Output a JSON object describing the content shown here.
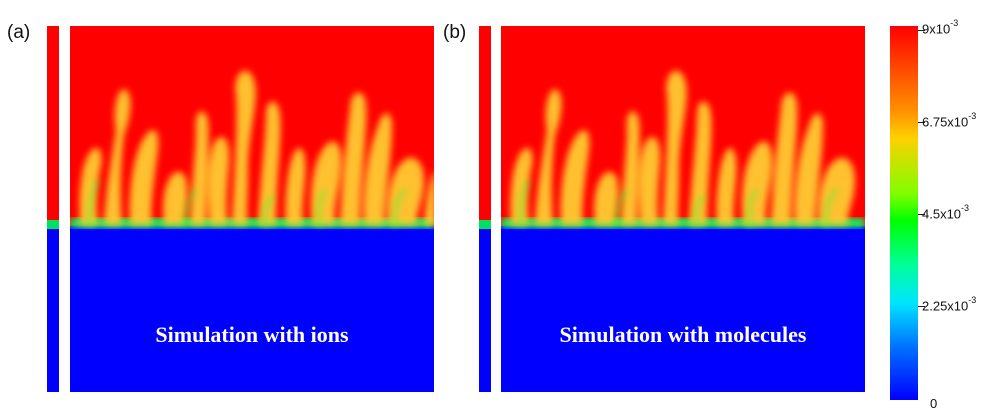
{
  "panels": [
    {
      "label": "(a)",
      "caption": "Simulation with ions"
    },
    {
      "label": "(b)",
      "caption": "Simulation with molecules"
    }
  ],
  "colorbar": {
    "ticks": [
      {
        "mantissa": "9x10",
        "exp": "-3"
      },
      {
        "mantissa": "6.75x10",
        "exp": "-3"
      },
      {
        "mantissa": "4.5x10",
        "exp": "-3"
      },
      {
        "mantissa": "2.25x10",
        "exp": "-3"
      },
      {
        "mantissa": "0",
        "exp": ""
      }
    ],
    "colors": {
      "top": "#ff0000",
      "upper": "#ffd000",
      "mid": "#00ff00",
      "lower": "#00e5ff",
      "bottom": "#0000ff"
    }
  }
}
